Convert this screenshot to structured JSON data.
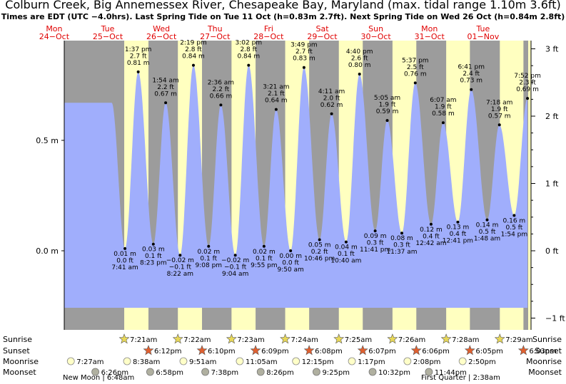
{
  "header": {
    "title": "Colburn Creek, Big Annemessex River, Chesapeake Bay, Maryland (max. tidal range 1.10m 3.6ft)",
    "subtitle": "Times are EDT (UTC −4.0hrs). Last Spring Tide on Tue 11 Oct (h=0.83m 2.7ft). Next Spring Tide on Wed 26 Oct (h=0.84m 2.8ft)"
  },
  "days": [
    {
      "dow": "Mon",
      "date": "24−Oct"
    },
    {
      "dow": "Tue",
      "date": "25−Oct"
    },
    {
      "dow": "Wed",
      "date": "26−Oct"
    },
    {
      "dow": "Thu",
      "date": "27−Oct"
    },
    {
      "dow": "Fri",
      "date": "28−Oct"
    },
    {
      "dow": "Sat",
      "date": "29−Oct"
    },
    {
      "dow": "Sun",
      "date": "30−Oct"
    },
    {
      "dow": "Mon",
      "date": "31−Oct"
    },
    {
      "dow": "Tue",
      "date": "01−Nov"
    }
  ],
  "chart_data": {
    "type": "area",
    "title": "Colburn Creek, Big Annemessex River, Chesapeake Bay, Maryland (max. tidal range 1.10m 3.6ft)",
    "x_unit": "hours since Mon 24 Oct 00:00 EDT",
    "y_unit": "m",
    "ylim_m": [
      -0.3,
      1.0
    ],
    "left_axis": {
      "ticks": [
        0.5,
        0.0
      ],
      "labels": [
        "0.5 m",
        "0.0 m"
      ]
    },
    "right_axis": {
      "ticks_ft": [
        3,
        2,
        1,
        0,
        -1
      ],
      "labels": [
        "3 ft",
        "2 ft",
        "1 ft",
        "0 ft",
        "−1 ft"
      ]
    },
    "extremes": [
      {
        "type": "low",
        "time": "7:41 am",
        "m": "0.01 m",
        "ft": "0.0 ft",
        "h": 31.68,
        "v": 0.01
      },
      {
        "type": "high",
        "time": "1:37 pm",
        "m": "0.81 m",
        "ft": "2.7 ft",
        "h": 37.62,
        "v": 0.81
      },
      {
        "type": "low",
        "time": "8:23 pm",
        "m": "0.03 m",
        "ft": "0.1 ft",
        "h": 44.38,
        "v": 0.03
      },
      {
        "type": "high",
        "time": "1:54 am",
        "m": "0.67 m",
        "ft": "2.2 ft",
        "h": 49.9,
        "v": 0.67
      },
      {
        "type": "low",
        "time": "8:22 am",
        "m": "−0.02 m",
        "ft": "−0.1 ft",
        "h": 56.37,
        "v": -0.02
      },
      {
        "type": "high",
        "time": "2:19 pm",
        "m": "0.84 m",
        "ft": "2.8 ft",
        "h": 62.32,
        "v": 0.84
      },
      {
        "type": "low",
        "time": "9:08 pm",
        "m": "0.02 m",
        "ft": "0.1 ft",
        "h": 69.13,
        "v": 0.02
      },
      {
        "type": "high",
        "time": "2:36 am",
        "m": "0.66 m",
        "ft": "2.2 ft",
        "h": 74.6,
        "v": 0.66
      },
      {
        "type": "low",
        "time": "9:04 am",
        "m": "−0.02 m",
        "ft": "−0.1 ft",
        "h": 81.07,
        "v": -0.02
      },
      {
        "type": "high",
        "time": "3:02 pm",
        "m": "0.84 m",
        "ft": "2.8 ft",
        "h": 87.03,
        "v": 0.84
      },
      {
        "type": "low",
        "time": "9:55 pm",
        "m": "0.02 m",
        "ft": "0.1 ft",
        "h": 93.92,
        "v": 0.02
      },
      {
        "type": "high",
        "time": "3:21 am",
        "m": "0.64 m",
        "ft": "2.1 ft",
        "h": 99.35,
        "v": 0.64
      },
      {
        "type": "low",
        "time": "9:50 am",
        "m": "0.00 m",
        "ft": "0.0 ft",
        "h": 105.83,
        "v": 0.0
      },
      {
        "type": "high",
        "time": "3:49 pm",
        "m": "0.83 m",
        "ft": "2.7 ft",
        "h": 111.82,
        "v": 0.83
      },
      {
        "type": "low",
        "time": "10:46 pm",
        "m": "0.05 m",
        "ft": "0.2 ft",
        "h": 118.77,
        "v": 0.05
      },
      {
        "type": "high",
        "time": "4:11 am",
        "m": "0.62 m",
        "ft": "2.0 ft",
        "h": 124.18,
        "v": 0.62
      },
      {
        "type": "low",
        "time": "10:40 am",
        "m": "0.04 m",
        "ft": "0.1 ft",
        "h": 130.67,
        "v": 0.04
      },
      {
        "type": "high",
        "time": "4:40 pm",
        "m": "0.80 m",
        "ft": "2.6 ft",
        "h": 136.67,
        "v": 0.8
      },
      {
        "type": "low",
        "time": "11:41 pm",
        "m": "0.09 m",
        "ft": "0.3 ft",
        "h": 143.68,
        "v": 0.09
      },
      {
        "type": "high",
        "time": "5:05 am",
        "m": "0.59 m",
        "ft": "1.9 ft",
        "h": 149.08,
        "v": 0.59
      },
      {
        "type": "low",
        "time": "11:37 am",
        "m": "0.08 m",
        "ft": "0.3 ft",
        "h": 155.62,
        "v": 0.08
      },
      {
        "type": "high",
        "time": "5:37 pm",
        "m": "0.76 m",
        "ft": "2.5 ft",
        "h": 161.62,
        "v": 0.76
      },
      {
        "type": "low",
        "time": "12:42 am",
        "m": "0.12 m",
        "ft": "0.4 ft",
        "h": 168.7,
        "v": 0.12
      },
      {
        "type": "high",
        "time": "6:07 am",
        "m": "0.58 m",
        "ft": "1.9 ft",
        "h": 174.12,
        "v": 0.58
      },
      {
        "type": "low",
        "time": "12:41 pm",
        "m": "0.13 m",
        "ft": "0.4 ft",
        "h": 180.68,
        "v": 0.13
      },
      {
        "type": "high",
        "time": "6:41 pm",
        "m": "0.73 m",
        "ft": "2.4 ft",
        "h": 186.68,
        "v": 0.73
      },
      {
        "type": "low",
        "time": "1:48 am",
        "m": "0.14 m",
        "ft": "0.5 ft",
        "h": 193.8,
        "v": 0.14
      },
      {
        "type": "high",
        "time": "7:18 am",
        "m": "0.57 m",
        "ft": "1.9 ft",
        "h": 199.3,
        "v": 0.57
      },
      {
        "type": "low",
        "time": "1:54 pm",
        "m": "0.16 m",
        "ft": "0.5 ft",
        "h": 205.9,
        "v": 0.16
      },
      {
        "type": "high",
        "time": "7:52 pm",
        "m": "0.69 m",
        "ft": "2.3 ft",
        "h": 211.87,
        "v": 0.69
      }
    ],
    "day_spans": [
      {
        "sunrise_h": 31.35,
        "sunset_h": 42.2
      },
      {
        "sunrise_h": 55.37,
        "sunset_h": 66.17
      },
      {
        "sunrise_h": 79.38,
        "sunset_h": 90.15
      },
      {
        "sunrise_h": 103.4,
        "sunset_h": 114.13
      },
      {
        "sunrise_h": 127.42,
        "sunset_h": 138.12
      },
      {
        "sunrise_h": 151.43,
        "sunset_h": 162.1
      },
      {
        "sunrise_h": 175.47,
        "sunset_h": 186.08
      },
      {
        "sunrise_h": 199.48,
        "sunset_h": 210.05
      }
    ]
  },
  "legend_labels": {
    "sunrise": "Sunrise",
    "sunset": "Sunset",
    "moonrise": "Moonrise",
    "moonset": "Moonset"
  },
  "sunrise": [
    {
      "h": 31.35,
      "time": "7:21am"
    },
    {
      "h": 55.37,
      "time": "7:22am"
    },
    {
      "h": 79.38,
      "time": "7:23am"
    },
    {
      "h": 103.4,
      "time": "7:24am"
    },
    {
      "h": 127.42,
      "time": "7:25am"
    },
    {
      "h": 151.43,
      "time": "7:26am"
    },
    {
      "h": 175.47,
      "time": "7:28am"
    },
    {
      "h": 199.48,
      "time": "7:29am"
    }
  ],
  "sunset": [
    {
      "h": 42.2,
      "time": "6:12pm"
    },
    {
      "h": 66.17,
      "time": "6:10pm"
    },
    {
      "h": 90.15,
      "time": "6:09pm"
    },
    {
      "h": 114.13,
      "time": "6:08pm"
    },
    {
      "h": 138.12,
      "time": "6:07pm"
    },
    {
      "h": 162.1,
      "time": "6:06pm"
    },
    {
      "h": 186.08,
      "time": "6:05pm"
    },
    {
      "h": 210.05,
      "time": "6:03pm"
    }
  ],
  "moonrise": [
    {
      "h": 7.45,
      "time": "7:27am"
    },
    {
      "h": 32.63,
      "time": "8:38am"
    },
    {
      "h": 57.85,
      "time": "9:51am"
    },
    {
      "h": 83.08,
      "time": "11:05am"
    },
    {
      "h": 108.25,
      "time": "12:15pm"
    },
    {
      "h": 133.28,
      "time": "1:17pm"
    },
    {
      "h": 158.13,
      "time": "2:08pm"
    },
    {
      "h": 182.83,
      "time": "2:50pm"
    }
  ],
  "moonset": [
    {
      "h": 18.43,
      "time": "6:26pm"
    },
    {
      "h": 42.97,
      "time": "6:58pm"
    },
    {
      "h": 67.63,
      "time": "7:38pm"
    },
    {
      "h": 92.43,
      "time": "8:26pm"
    },
    {
      "h": 117.42,
      "time": "9:25pm"
    },
    {
      "h": 142.53,
      "time": "10:32pm"
    },
    {
      "h": 167.73,
      "time": "11:44pm"
    }
  ],
  "moon_phases": [
    {
      "text": "New Moon | 6:48am"
    },
    {
      "text": "First Quarter | 2:38am"
    }
  ],
  "colors": {
    "night": "#9c9c9c",
    "day": "#ffffc0",
    "water": "#a0aefc",
    "weekday": "#e00000"
  }
}
